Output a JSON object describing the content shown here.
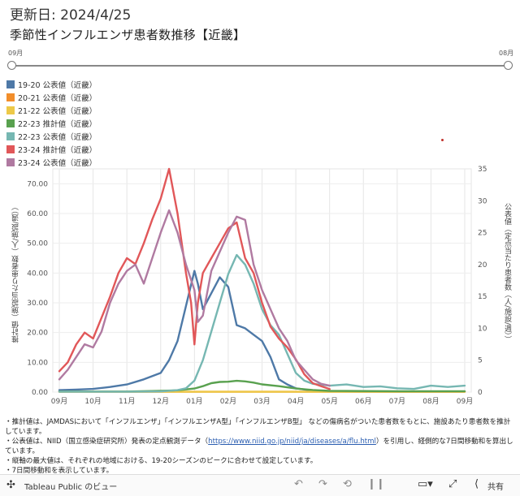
{
  "header": {
    "updated": "更新日: 2024/4/25",
    "title": "季節性インフルエンザ患者数推移【近畿】"
  },
  "slider": {
    "start_label": "09月",
    "end_label": "08月"
  },
  "legend": [
    {
      "label": "19-20 公表値（近畿）",
      "color": "#4e79a7"
    },
    {
      "label": "20-21 公表値（近畿）",
      "color": "#f28e2b"
    },
    {
      "label": "21-22 公表値（近畿）",
      "color": "#edc948"
    },
    {
      "label": "22-23 推計値（近畿）",
      "color": "#59a14f"
    },
    {
      "label": "22-23 公表値（近畿）",
      "color": "#76b7b2"
    },
    {
      "label": "23-24 推計値（近畿）",
      "color": "#e15759"
    },
    {
      "label": "23-24 公表値（近畿）",
      "color": "#b07aa1"
    }
  ],
  "axes": {
    "left_label": "推計値（施設当たり患者数（人/施設/週））",
    "right_label": "公表値（定点当たり患者数（人/施設/週））"
  },
  "chart_data": {
    "type": "line",
    "x_labels": [
      "09月",
      "10月",
      "11月",
      "12月",
      "01月",
      "02月",
      "03月",
      "04月",
      "05月",
      "06月",
      "07月",
      "08月",
      "09月"
    ],
    "left_axis": {
      "ylim": [
        0,
        75
      ],
      "ticks": [
        "0.00",
        "10.00",
        "20.00",
        "30.00",
        "40.00",
        "50.00",
        "60.00",
        "70.00"
      ]
    },
    "right_axis": {
      "ylim": [
        0,
        35
      ],
      "ticks": [
        "0",
        "5",
        "10",
        "15",
        "20",
        "25",
        "30",
        "35"
      ]
    },
    "series": [
      {
        "name": "19-20 公表値（近畿）",
        "axis": "right",
        "color": "#4e79a7",
        "x": [
          0,
          0.5,
          1,
          1.5,
          2,
          2.5,
          3,
          3.25,
          3.5,
          3.75,
          4,
          4.1,
          4.25,
          4.5,
          4.75,
          5,
          5.25,
          5.5,
          5.75,
          6,
          6.25,
          6.5,
          6.75,
          7,
          7.5,
          8,
          9,
          10,
          11,
          12
        ],
        "values": [
          0.3,
          0.4,
          0.5,
          0.8,
          1.2,
          2.0,
          3.0,
          5.0,
          8.0,
          13.5,
          19.0,
          17.0,
          13.0,
          15.5,
          18.0,
          16.5,
          10.5,
          10.0,
          9.0,
          8.0,
          5.5,
          2.0,
          1.2,
          0.6,
          0.2,
          0.1,
          0.05,
          0.05,
          0.05,
          0.05
        ]
      },
      {
        "name": "20-21 公表値（近畿）",
        "axis": "right",
        "color": "#f28e2b",
        "x": [
          0,
          2,
          4,
          6,
          8,
          10,
          12
        ],
        "values": [
          0.05,
          0.05,
          0.05,
          0.05,
          0.05,
          0.05,
          0.05
        ]
      },
      {
        "name": "21-22 公表値（近畿）",
        "axis": "right",
        "color": "#edc948",
        "x": [
          0,
          2,
          4,
          6,
          8,
          10,
          12
        ],
        "values": [
          0.05,
          0.05,
          0.05,
          0.05,
          0.05,
          0.05,
          0.05
        ]
      },
      {
        "name": "22-23 推計値（近畿）",
        "axis": "left",
        "color": "#59a14f",
        "x": [
          0,
          1,
          2,
          3,
          3.5,
          4,
          4.25,
          4.5,
          4.75,
          5,
          5.25,
          5.5,
          5.75,
          6,
          6.5,
          7,
          7.5,
          8,
          10,
          12
        ],
        "values": [
          0.2,
          0.2,
          0.2,
          0.4,
          0.6,
          1.2,
          2.0,
          3.0,
          3.4,
          3.5,
          3.8,
          3.6,
          3.2,
          2.6,
          2.0,
          1.2,
          0.7,
          0.4,
          0.3,
          0.3
        ]
      },
      {
        "name": "22-23 公表値（近畿）",
        "axis": "right",
        "color": "#76b7b2",
        "x": [
          0,
          1,
          2,
          3,
          3.5,
          3.75,
          4,
          4.25,
          4.5,
          4.75,
          5,
          5.25,
          5.5,
          5.75,
          6,
          6.25,
          6.5,
          6.75,
          7,
          7.25,
          7.5,
          8,
          8.5,
          9,
          9.5,
          10,
          10.5,
          11,
          11.5,
          12
        ],
        "values": [
          0.05,
          0.05,
          0.05,
          0.1,
          0.3,
          0.6,
          1.8,
          5.0,
          9.5,
          14.0,
          18.5,
          21.5,
          20.0,
          17.0,
          13.0,
          10.5,
          9.0,
          6.0,
          3.0,
          1.8,
          1.3,
          1.0,
          1.2,
          0.8,
          0.9,
          0.6,
          0.5,
          1.0,
          0.8,
          1.0
        ]
      },
      {
        "name": "23-24 推計値（近畿）",
        "axis": "left",
        "color": "#e15759",
        "x": [
          0,
          0.25,
          0.5,
          0.75,
          1,
          1.25,
          1.5,
          1.75,
          2,
          2.25,
          2.5,
          2.75,
          3,
          3.25,
          3.5,
          3.75,
          3.9,
          4,
          4.1,
          4.25,
          4.5,
          4.75,
          5,
          5.25,
          5.5,
          5.75,
          6,
          6.25,
          6.5,
          6.75,
          7,
          7.25,
          7.5,
          7.75,
          8
        ],
        "values": [
          7,
          10,
          16,
          20,
          18,
          25,
          32,
          40,
          45,
          43,
          50,
          58,
          65,
          75,
          60,
          40,
          30,
          16,
          30,
          40,
          45,
          50,
          55,
          57,
          45,
          40,
          30,
          22,
          18,
          15,
          11,
          6,
          3,
          2,
          1
        ]
      },
      {
        "name": "23-24 公表値（近畿）",
        "axis": "right",
        "color": "#b07aa1",
        "x": [
          0,
          0.25,
          0.5,
          0.75,
          1,
          1.25,
          1.5,
          1.75,
          2,
          2.25,
          2.5,
          2.75,
          3,
          3.25,
          3.5,
          3.75,
          4,
          4.1,
          4.25,
          4.5,
          4.75,
          5,
          5.25,
          5.5,
          5.75,
          6,
          6.25,
          6.5,
          6.75,
          7,
          7.25,
          7.5,
          7.75,
          8
        ],
        "values": [
          2.0,
          3.5,
          5.5,
          7.5,
          7.0,
          9.5,
          14,
          17,
          19,
          20,
          17,
          21,
          25,
          28.5,
          25,
          20,
          16,
          11,
          12,
          19,
          22,
          25,
          27.5,
          27,
          20,
          16,
          13,
          10,
          8,
          5,
          3.5,
          2,
          1.3,
          1.0
        ]
      }
    ]
  },
  "notes": {
    "line1": "・推計値は、JAMDASにおいて「インフルエンザ」「インフルエンザA型」「インフルエンザB型」 などの傷病名がついた患者数をもとに、施設あたり患者数を推計しています。",
    "line2a": "・公表値は、NIID（国立感染症研究所）発表の定点観測データ（",
    "link": "https://www.niid.go.jp/niid/ja/diseases/a/flu.html",
    "line2b": "）を引用し、経側的な7日間移動和を算出しています。",
    "line3": "・縦軸の最大値は、それぞれの地域における、19-20シーズンのピークに合わせて設定しています。",
    "line4": "・7日間移動和を表示しています。"
  },
  "footer": {
    "tableau_label": "Tableau Public のビュー",
    "share_label": "共有"
  }
}
